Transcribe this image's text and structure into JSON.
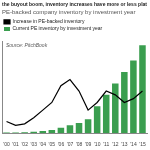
{
  "chart_data": {
    "type": "bar",
    "title": "the buyout boom, inventory increases have more or less plat",
    "subtitle": "PE-backed company inventory by investment year",
    "annotations": [
      "Source: PitchBook"
    ],
    "categories": [
      "'00",
      "'01",
      "'02",
      "'03",
      "'04",
      "'05",
      "'06",
      "'07",
      "'08",
      "'09",
      "'10",
      "'11",
      "'12",
      "'13",
      "'14",
      "'15"
    ],
    "series": [
      {
        "name": "Current PE inventory by investment year",
        "type": "bar",
        "color": "#3a9e4f",
        "values": [
          5,
          5,
          10,
          15,
          25,
          40,
          70,
          100,
          130,
          180,
          350,
          500,
          650,
          800,
          950,
          1150
        ]
      },
      {
        "name": "Increase in PE-backed inventory",
        "type": "line",
        "color": "#000000",
        "values": [
          150,
          100,
          120,
          200,
          300,
          400,
          620,
          700,
          550,
          300,
          400,
          550,
          500,
          400,
          450,
          550
        ]
      }
    ],
    "ylim": [
      0,
      1200
    ],
    "grid": false,
    "legend": "top-left",
    "tick_labels": "x"
  }
}
